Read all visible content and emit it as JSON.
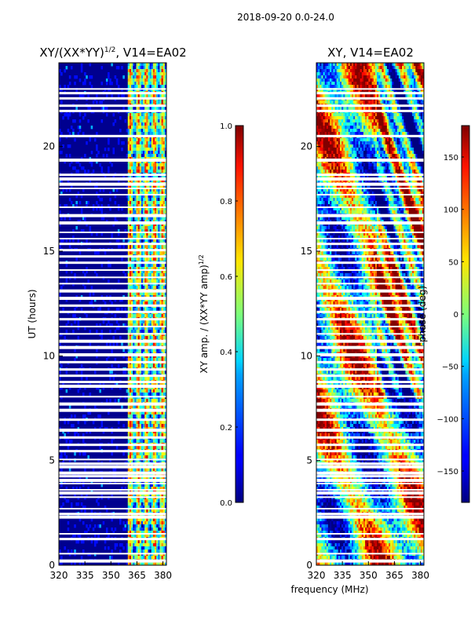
{
  "figure": {
    "suptitle": "2018-09-20 0.0-24.0",
    "shared_xlabel": "frequency (MHz)"
  },
  "chart_data": [
    {
      "type": "heatmap",
      "title": "XY/(XX*YY)^1/2, V14=EA02",
      "title_main": "XY/(XX*YY)",
      "title_exp": "1/2",
      "title_rest": ", V14=EA02",
      "xlabel": "",
      "ylabel": "UT (hours)",
      "xlim": [
        320,
        382
      ],
      "ylim": [
        0,
        24
      ],
      "x_ticks": [
        320,
        335,
        350,
        365,
        380
      ],
      "y_ticks": [
        0,
        5,
        10,
        15,
        20
      ],
      "colorscale": "jet",
      "description_values": "low amplitude (~0.05) below 360 MHz; high amplitude bands 360-382 MHz; white gaps = flagged times",
      "colorbar": {
        "label": "XY amp. / (XX*YY amp)^1/2",
        "label_main": "XY amp. / (XX*YY amp)",
        "label_exp": "1/2",
        "range": [
          0.0,
          1.0
        ],
        "ticks": [
          "0.0",
          "0.2",
          "0.4",
          "0.6",
          "0.8",
          "1.0"
        ],
        "tick_values": [
          0.0,
          0.2,
          0.4,
          0.6,
          0.8,
          1.0
        ]
      }
    },
    {
      "type": "heatmap",
      "title": "XY, V14=EA02",
      "xlabel": "frequency (MHz)",
      "ylabel": "",
      "xlim": [
        320,
        382
      ],
      "ylim": [
        0,
        24
      ],
      "x_ticks": [
        320,
        335,
        350,
        365,
        380
      ],
      "y_ticks": [
        0,
        5,
        10,
        15,
        20
      ],
      "colorscale": "jet",
      "colorbar": {
        "label": "phase (deg)",
        "range": [
          -180,
          180
        ],
        "ticks": [
          "−150",
          "−100",
          "−50",
          "0",
          "50",
          "100",
          "150"
        ],
        "tick_values": [
          -150,
          -100,
          -50,
          0,
          50,
          100,
          150
        ]
      }
    }
  ],
  "flagged_hours": [
    0.2,
    0.55,
    1.25,
    1.5,
    2.3,
    2.45,
    2.7,
    3.25,
    3.45,
    3.6,
    3.9,
    4.05,
    4.25,
    4.4,
    4.7,
    4.85,
    5.05,
    5.45,
    5.75,
    6.1,
    6.45,
    6.95,
    7.4,
    7.7,
    8.05,
    8.55,
    8.75,
    9.05,
    9.35,
    9.7,
    10.05,
    10.4,
    10.7,
    11.05,
    11.4,
    11.75,
    12.1,
    12.4,
    12.75,
    13.1,
    13.45,
    13.75,
    14.1,
    14.45,
    14.75,
    15.05,
    15.35,
    15.6,
    15.9,
    16.35,
    16.7,
    17.1,
    17.7,
    18.0,
    18.2,
    18.45,
    18.65,
    19.35,
    20.5,
    21.7,
    21.95,
    22.3,
    22.55,
    22.75
  ]
}
